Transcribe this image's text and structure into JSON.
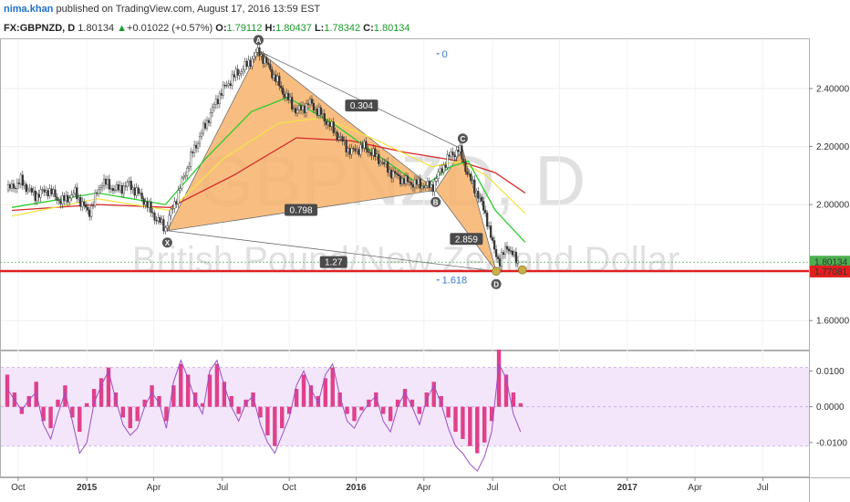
{
  "header": {
    "author": "nima.khan",
    "published": "published on TradingView.com, August 17, 2016 13:59 EST",
    "symbol": "FX:GBPNZD, D",
    "last": "1.80134",
    "change": "+0.01022 (+0.57%)",
    "o_label": "O:",
    "o": "1.79112",
    "h_label": "H:",
    "h": "1.80437",
    "l_label": "L:",
    "l": "1.78342",
    "c_label": "C:",
    "c": "1.80134"
  },
  "watermark": {
    "symbol": "GBPNZD, D",
    "name": "British Pound/New Zealand Dollar"
  },
  "colors": {
    "pattern_fill": "#f7b36b",
    "sma_green": "#2ecc2e",
    "sma_yellow": "#f2e24a",
    "sma_red": "#d62a2a",
    "support": "#e02020",
    "price_line": "#4caf50",
    "osc_line": "#9b4dc8",
    "osc_hist": "#e0408a",
    "osc_band": "#f3e6fb"
  },
  "chart_data": [
    {
      "type": "line",
      "subtype": "candlestick-with-harmonic-pattern",
      "x_ticks": [
        "Oct",
        "2015",
        "Apr",
        "Jul",
        "Oct",
        "2016",
        "Apr",
        "Jul",
        "Oct",
        "2017",
        "Apr",
        "Jul"
      ],
      "y_ticks": [
        "2.40000",
        "2.20000",
        "2.00000",
        "1.60000"
      ],
      "ylim": [
        1.5,
        2.57
      ],
      "current_price": {
        "value": 1.80134,
        "label": "1.80134"
      },
      "support_level": {
        "value": 1.77081,
        "label": "1.77081"
      },
      "close_series": {
        "t": [
          0,
          15,
          30,
          45,
          60,
          75,
          90,
          105,
          120,
          135,
          150,
          165,
          175,
          190,
          205,
          220,
          235,
          250,
          265,
          278,
          290,
          305,
          320,
          335,
          350,
          365,
          380,
          395,
          410,
          425,
          440,
          455,
          470,
          480,
          490,
          500,
          510,
          520,
          530,
          537,
          545,
          553,
          560,
          566
        ],
        "v": [
          2.05,
          2.08,
          2.03,
          2.05,
          2.01,
          2.04,
          1.97,
          2.08,
          2.05,
          2.07,
          2.02,
          1.95,
          1.92,
          2.05,
          2.18,
          2.28,
          2.38,
          2.44,
          2.48,
          2.53,
          2.47,
          2.39,
          2.32,
          2.35,
          2.3,
          2.24,
          2.18,
          2.2,
          2.16,
          2.11,
          2.08,
          2.07,
          2.06,
          2.12,
          2.17,
          2.19,
          2.1,
          2.04,
          1.96,
          1.86,
          1.8,
          1.86,
          1.82,
          1.8
        ]
      },
      "sma_green": {
        "t": [
          5,
          100,
          175,
          220,
          270,
          310,
          360,
          410,
          460,
          490,
          510,
          540,
          573
        ],
        "v": [
          1.99,
          2.04,
          2.0,
          2.16,
          2.32,
          2.37,
          2.28,
          2.17,
          2.06,
          2.13,
          2.15,
          1.98,
          1.87
        ]
      },
      "sma_yellow": {
        "t": [
          5,
          100,
          180,
          240,
          300,
          350,
          410,
          470,
          500,
          530,
          573
        ],
        "v": [
          1.96,
          2.02,
          1.98,
          2.16,
          2.28,
          2.3,
          2.22,
          2.13,
          2.15,
          2.1,
          1.97
        ]
      },
      "sma_red": {
        "t": [
          5,
          100,
          180,
          250,
          320,
          380,
          440,
          500,
          540,
          573
        ],
        "v": [
          1.98,
          2.0,
          1.99,
          2.1,
          2.23,
          2.22,
          2.18,
          2.15,
          2.11,
          2.04
        ]
      },
      "harmonic_points": [
        {
          "name": "X",
          "t": 177,
          "v": 1.91
        },
        {
          "name": "A",
          "t": 278,
          "v": 2.53
        },
        {
          "name": "B",
          "t": 474,
          "v": 2.05
        },
        {
          "name": "C",
          "t": 504,
          "v": 2.19
        },
        {
          "name": "D",
          "t": 541,
          "v": 1.77
        }
      ],
      "ratios": [
        {
          "label": "0.304",
          "t": 392,
          "v": 2.34
        },
        {
          "label": "0.798",
          "t": 325,
          "v": 1.98
        },
        {
          "label": "2.859",
          "t": 508,
          "v": 1.88
        },
        {
          "label": "1.27",
          "t": 361,
          "v": 1.8
        }
      ],
      "fib_labels": [
        {
          "label": "0",
          "t": 478,
          "v": 2.52
        },
        {
          "label": "1.618",
          "t": 478,
          "v": 1.74
        }
      ],
      "marked_points": [
        {
          "t": 541,
          "v": 1.77
        },
        {
          "t": 570,
          "v": 1.775
        }
      ]
    },
    {
      "type": "bar",
      "subtype": "oscillator",
      "y_ticks": [
        "0.0100",
        "0.0000",
        "-0.0100"
      ],
      "ylim": [
        -0.0195,
        0.0155
      ],
      "band": [
        -0.011,
        0.011
      ],
      "t": [
        0,
        8,
        16,
        24,
        32,
        40,
        48,
        56,
        64,
        72,
        80,
        88,
        96,
        104,
        112,
        120,
        128,
        136,
        144,
        152,
        160,
        168,
        176,
        184,
        192,
        200,
        208,
        216,
        224,
        232,
        240,
        248,
        256,
        264,
        272,
        280,
        288,
        296,
        304,
        312,
        320,
        328,
        336,
        344,
        352,
        360,
        368,
        376,
        384,
        392,
        400,
        408,
        416,
        424,
        432,
        440,
        448,
        456,
        464,
        472,
        480,
        488,
        496,
        504,
        512,
        520,
        528,
        536,
        544,
        552,
        560,
        568
      ],
      "values": [
        0.009,
        0.004,
        -0.002,
        0.003,
        0.007,
        -0.004,
        -0.006,
        0.002,
        0.006,
        -0.003,
        -0.007,
        0.001,
        0.005,
        0.008,
        0.011,
        0.004,
        -0.003,
        -0.006,
        -0.004,
        0.002,
        0.006,
        0.003,
        -0.004,
        0.006,
        0.012,
        0.009,
        0.004,
        0.001,
        0.009,
        0.012,
        0.007,
        0.003,
        -0.002,
        0.002,
        0.004,
        -0.003,
        -0.008,
        -0.011,
        -0.006,
        -0.002,
        0.005,
        0.009,
        0.006,
        0.003,
        0.008,
        0.011,
        0.004,
        -0.002,
        -0.004,
        -0.001,
        0.002,
        0.004,
        -0.002,
        -0.004,
        0.002,
        0.005,
        0.002,
        -0.002,
        0.004,
        0.007,
        0.003,
        -0.003,
        -0.007,
        -0.009,
        -0.011,
        -0.013,
        -0.01,
        -0.004,
        0.016,
        0.009,
        0.004,
        0.001
      ],
      "line": [
        0.005,
        0.002,
        -0.001,
        0.002,
        0.004,
        -0.005,
        -0.009,
        -0.002,
        0.004,
        -0.004,
        -0.013,
        -0.01,
        0.001,
        0.006,
        0.01,
        0.002,
        -0.005,
        -0.008,
        -0.006,
        0.0,
        0.004,
        0.001,
        -0.006,
        0.007,
        0.013,
        0.008,
        0.002,
        -0.002,
        0.01,
        0.013,
        0.006,
        0.0,
        -0.004,
        0.001,
        0.003,
        -0.005,
        -0.01,
        -0.013,
        -0.008,
        -0.003,
        0.006,
        0.01,
        0.005,
        0.001,
        0.009,
        0.012,
        0.003,
        -0.004,
        -0.006,
        -0.002,
        0.001,
        0.003,
        -0.004,
        -0.007,
        0.0,
        0.004,
        0.0,
        -0.005,
        0.002,
        0.006,
        0.001,
        -0.006,
        -0.011,
        -0.013,
        -0.016,
        -0.018,
        -0.014,
        -0.007,
        0.012,
        0.008,
        -0.002,
        -0.007
      ]
    }
  ]
}
